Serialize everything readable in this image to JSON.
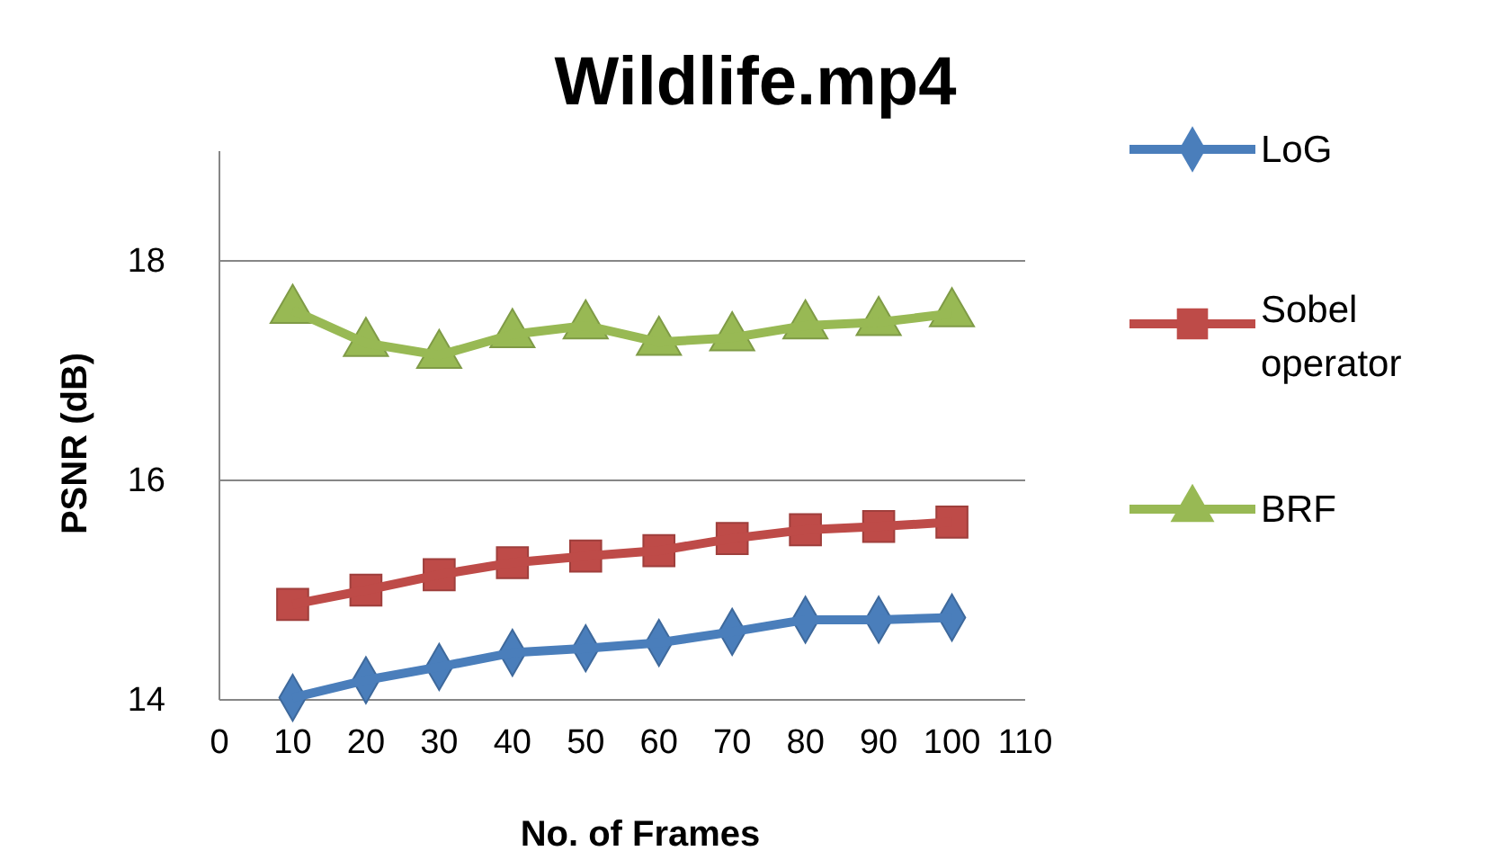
{
  "chart_data": {
    "type": "line",
    "title": "Wildlife.mp4",
    "xlabel": "No. of Frames",
    "ylabel": "PSNR (dB)",
    "x": [
      10,
      20,
      30,
      40,
      50,
      60,
      70,
      80,
      90,
      100
    ],
    "xlim": [
      0,
      110
    ],
    "xticks": [
      0,
      10,
      20,
      30,
      40,
      50,
      60,
      70,
      80,
      90,
      100,
      110
    ],
    "ylim": [
      14,
      19
    ],
    "yticks": [
      14,
      16,
      18
    ],
    "grid": "y",
    "legend": "right",
    "line_style": "solid",
    "series": [
      {
        "name": "LoG",
        "color": "#4a7ebb",
        "marker": "diamond",
        "values": [
          14.02,
          14.18,
          14.3,
          14.43,
          14.47,
          14.52,
          14.62,
          14.73,
          14.73,
          14.75
        ]
      },
      {
        "name": "Sobel operator",
        "color": "#be4b48",
        "marker": "square",
        "values": [
          14.87,
          15.0,
          15.14,
          15.25,
          15.31,
          15.36,
          15.47,
          15.55,
          15.58,
          15.62
        ]
      },
      {
        "name": "BRF",
        "color": "#98b954",
        "marker": "triangle",
        "values": [
          17.55,
          17.25,
          17.14,
          17.33,
          17.41,
          17.26,
          17.3,
          17.41,
          17.44,
          17.52
        ]
      }
    ]
  }
}
